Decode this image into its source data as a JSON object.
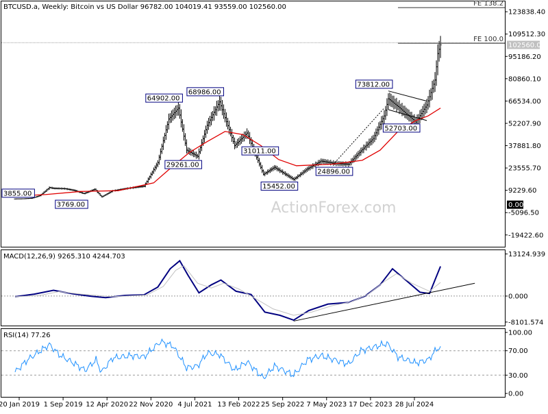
{
  "header": {
    "symbol_info": "BTCUSD.a, Weekly:  Bitcoin vs US Dollar  96782.00 104019.41 93559.00 102560.00"
  },
  "watermark": "ActionForex.com",
  "colors": {
    "price_bar": "#000000",
    "moving_average": "#e00000",
    "macd_line": "#000080",
    "macd_signal": "#c0c0c0",
    "rsi_line": "#1e90ff",
    "fe_line": "#333333",
    "dotted_level": "#999999"
  },
  "chart_data": [
    {
      "type": "line",
      "panel": "price",
      "price_axis": {
        "ticks": [
          123838.4,
          109512.3,
          95186.2,
          80860.1,
          66534.0,
          52207.9,
          37881.8,
          23555.7,
          9229.6,
          -5096.5,
          -19422.6
        ],
        "labels": [
          "123838.40",
          "109512.30",
          "95186.20",
          "80860.10",
          "66534.00",
          "52207.90",
          "37881.80",
          "23555.70",
          "9229.60",
          "-5096.50",
          "-19422.60"
        ],
        "range": [
          -27000,
          130500
        ]
      },
      "current_price": {
        "value": 102560,
        "label": "102560.00"
      },
      "zero_marker": {
        "value": 0,
        "label": "0.00"
      },
      "x_axis": {
        "labels": [
          "20 Jan 2019",
          "1 Sep 2019",
          "12 Apr 2020",
          "22 Nov 2020",
          "4 Jul 2021",
          "13 Feb 2022",
          "25 Sep 2022",
          "7 May 2023",
          "17 Dec 2023",
          "28 Jul 2024"
        ],
        "dates": [
          "2019-01-20",
          "2019-09-01",
          "2020-04-12",
          "2020-11-22",
          "2021-07-04",
          "2022-02-13",
          "2022-09-25",
          "2023-05-07",
          "2023-12-17",
          "2024-07-28"
        ]
      },
      "price_path": [
        [
          "2018-12-30",
          3700
        ],
        [
          "2019-02-10",
          3800
        ],
        [
          "2019-03-24",
          4100
        ],
        [
          "2019-05-05",
          5800
        ],
        [
          "2019-06-23",
          11000
        ],
        [
          "2019-07-14",
          10500
        ],
        [
          "2019-09-08",
          10300
        ],
        [
          "2019-10-27",
          9200
        ],
        [
          "2019-12-15",
          7100
        ],
        [
          "2020-02-09",
          9900
        ],
        [
          "2020-03-15",
          5000
        ],
        [
          "2020-05-10",
          8900
        ],
        [
          "2020-07-26",
          10500
        ],
        [
          "2020-10-18",
          11900
        ],
        [
          "2020-12-27",
          27000
        ],
        [
          "2021-02-21",
          55000
        ],
        [
          "2021-04-11",
          62000
        ],
        [
          "2021-05-23",
          35000
        ],
        [
          "2021-07-18",
          31000
        ],
        [
          "2021-09-05",
          51000
        ],
        [
          "2021-11-07",
          66000
        ],
        [
          "2022-01-23",
          38000
        ],
        [
          "2022-03-27",
          46000
        ],
        [
          "2022-06-19",
          19500
        ],
        [
          "2022-08-14",
          24000
        ],
        [
          "2022-11-20",
          16200
        ],
        [
          "2023-01-29",
          23000
        ],
        [
          "2023-04-09",
          28000
        ],
        [
          "2023-06-18",
          26500
        ],
        [
          "2023-08-27",
          26000
        ],
        [
          "2023-10-29",
          34500
        ],
        [
          "2023-12-31",
          42500
        ],
        [
          "2024-02-25",
          57000
        ],
        [
          "2024-03-17",
          68000
        ],
        [
          "2024-05-05",
          63000
        ],
        [
          "2024-08-04",
          53000
        ],
        [
          "2024-09-29",
          64000
        ],
        [
          "2024-11-10",
          80000
        ],
        [
          "2024-11-24",
          97000
        ],
        [
          "2024-12-08",
          102560
        ]
      ],
      "moving_average": [
        [
          "2018-12-30",
          5500
        ],
        [
          "2019-06-02",
          6500
        ],
        [
          "2019-12-01",
          8500
        ],
        [
          "2020-06-07",
          9000
        ],
        [
          "2020-12-06",
          14000
        ],
        [
          "2021-03-07",
          24000
        ],
        [
          "2021-06-06",
          33500
        ],
        [
          "2021-09-05",
          40500
        ],
        [
          "2021-12-05",
          47000
        ],
        [
          "2022-03-06",
          45000
        ],
        [
          "2022-06-05",
          38000
        ],
        [
          "2022-09-04",
          29000
        ],
        [
          "2022-12-04",
          25000
        ],
        [
          "2023-06-04",
          26000
        ],
        [
          "2023-11-05",
          28500
        ],
        [
          "2024-02-04",
          35000
        ],
        [
          "2024-05-05",
          47000
        ],
        [
          "2024-08-04",
          54000
        ],
        [
          "2024-10-06",
          57000
        ],
        [
          "2024-12-08",
          62000
        ]
      ],
      "fib_levels": [
        {
          "label": "FE 138.2",
          "value": 126500,
          "from": "2024-05-05"
        },
        {
          "label": "FE 100.0",
          "value": 103600,
          "from": "2024-05-05"
        }
      ],
      "dotted_level": {
        "value": 104019.41
      },
      "annotations": [
        {
          "label": "3855.00",
          "date": "2019-01-20",
          "value": 3855,
          "side": "right",
          "pos": "above"
        },
        {
          "label": "3769.00",
          "date": "2019-12-15",
          "value": 3769,
          "side": "left",
          "pos": "below"
        },
        {
          "label": "64902.00",
          "date": "2021-04-11",
          "value": 64902,
          "side": "left",
          "pos": "above"
        },
        {
          "label": "68986.00",
          "date": "2021-11-07",
          "value": 68986,
          "side": "left",
          "pos": "above"
        },
        {
          "label": "29261.00",
          "date": "2021-07-18",
          "value": 29261,
          "side": "left",
          "pos": "below"
        },
        {
          "label": "31011.00",
          "date": "2022-08-14",
          "value": 31011,
          "side": "left",
          "pos": "above"
        },
        {
          "label": "15452.00",
          "date": "2022-11-20",
          "value": 15452,
          "side": "left",
          "pos": "below"
        },
        {
          "label": "24896.00",
          "date": "2023-08-27",
          "value": 24896,
          "side": "left",
          "pos": "below"
        },
        {
          "label": "73812.00",
          "date": "2024-03-17",
          "value": 73812,
          "side": "left",
          "pos": "above"
        },
        {
          "label": "52703.00",
          "date": "2024-08-04",
          "value": 52703,
          "side": "left",
          "pos": "below"
        }
      ],
      "trendlines": [
        {
          "from": [
            "2023-06-18",
            27000
          ],
          "to": [
            "2024-02-25",
            62000
          ],
          "dashed": true
        },
        {
          "from": [
            "2024-03-17",
            73000
          ],
          "to": [
            "2024-09-29",
            66500
          ],
          "dashed": false
        },
        {
          "from": [
            "2024-03-17",
            61000
          ],
          "to": [
            "2024-09-29",
            54000
          ],
          "dashed": false
        }
      ]
    },
    {
      "type": "line",
      "panel": "macd",
      "title": "MACD(12,26,9) 9265.310 4244.703",
      "axis": {
        "ticks": [
          13124.939,
          0.0,
          -8101.574
        ],
        "labels": [
          "13124.939",
          "0.000",
          "-8101.574"
        ],
        "range": [
          -9200,
          14300
        ]
      },
      "series": [
        {
          "role": "macd",
          "points": [
            [
              "2018-12-30",
              -200
            ],
            [
              "2019-04-07",
              600
            ],
            [
              "2019-07-14",
              1800
            ],
            [
              "2019-10-20",
              700
            ],
            [
              "2020-01-26",
              -100
            ],
            [
              "2020-04-05",
              -500
            ],
            [
              "2020-07-12",
              200
            ],
            [
              "2020-10-18",
              400
            ],
            [
              "2020-12-27",
              2800
            ],
            [
              "2021-02-28",
              8500
            ],
            [
              "2021-04-18",
              11000
            ],
            [
              "2021-05-30",
              6500
            ],
            [
              "2021-07-25",
              1000
            ],
            [
              "2021-09-26",
              3500
            ],
            [
              "2021-11-14",
              5000
            ],
            [
              "2022-01-30",
              1500
            ],
            [
              "2022-04-17",
              500
            ],
            [
              "2022-06-26",
              -5000
            ],
            [
              "2022-09-11",
              -6000
            ],
            [
              "2022-11-20",
              -7500
            ],
            [
              "2023-02-05",
              -4500
            ],
            [
              "2023-05-14",
              -2500
            ],
            [
              "2023-08-27",
              -2000
            ],
            [
              "2023-11-19",
              0
            ],
            [
              "2024-02-04",
              3500
            ],
            [
              "2024-04-07",
              8500
            ],
            [
              "2024-06-23",
              4500
            ],
            [
              "2024-08-25",
              1200
            ],
            [
              "2024-10-13",
              800
            ],
            [
              "2024-12-08",
              9265.31
            ]
          ]
        },
        {
          "role": "signal",
          "points": [
            [
              "2018-12-30",
              -200
            ],
            [
              "2019-05-05",
              200
            ],
            [
              "2019-08-11",
              1400
            ],
            [
              "2019-12-01",
              600
            ],
            [
              "2020-05-10",
              -200
            ],
            [
              "2020-11-01",
              300
            ],
            [
              "2021-01-24",
              3000
            ],
            [
              "2021-03-28",
              8000
            ],
            [
              "2021-05-09",
              9500
            ],
            [
              "2021-07-18",
              4000
            ],
            [
              "2021-09-26",
              2500
            ],
            [
              "2021-11-28",
              4000
            ],
            [
              "2022-02-13",
              2200
            ],
            [
              "2022-05-15",
              -1000
            ],
            [
              "2022-08-07",
              -4000
            ],
            [
              "2022-11-20",
              -6000
            ],
            [
              "2023-02-19",
              -5000
            ],
            [
              "2023-06-04",
              -3000
            ],
            [
              "2023-09-10",
              -1800
            ],
            [
              "2023-12-03",
              500
            ],
            [
              "2024-02-25",
              4500
            ],
            [
              "2024-04-28",
              7000
            ],
            [
              "2024-07-14",
              4000
            ],
            [
              "2024-10-13",
              1500
            ],
            [
              "2024-12-08",
              4244.703
            ]
          ]
        }
      ],
      "trendlines": [
        {
          "from": [
            "2022-11-20",
            -7800
          ],
          "to": [
            "2025-06-01",
            4000
          ]
        }
      ]
    },
    {
      "type": "line",
      "panel": "rsi",
      "title": "RSI(14) 77.26",
      "axis": {
        "ticks": [
          100.0,
          70.0,
          30.0,
          0.0
        ],
        "labels": [
          "100.00",
          "70.00",
          "30.00",
          "0.00"
        ],
        "range": [
          0,
          100
        ],
        "dashed_levels": [
          70,
          30
        ]
      },
      "series": [
        {
          "role": "rsi",
          "points": [
            [
              "2018-12-30",
              35
            ],
            [
              "2019-03-03",
              55
            ],
            [
              "2019-06-23",
              80
            ],
            [
              "2019-08-18",
              62
            ],
            [
              "2019-11-03",
              48
            ],
            [
              "2019-12-22",
              38
            ],
            [
              "2020-02-16",
              55
            ],
            [
              "2020-03-15",
              35
            ],
            [
              "2020-05-10",
              58
            ],
            [
              "2020-08-16",
              62
            ],
            [
              "2020-10-18",
              60
            ],
            [
              "2021-01-10",
              85
            ],
            [
              "2021-03-14",
              78
            ],
            [
              "2021-05-23",
              42
            ],
            [
              "2021-07-18",
              45
            ],
            [
              "2021-09-05",
              66
            ],
            [
              "2021-11-07",
              64
            ],
            [
              "2022-01-23",
              38
            ],
            [
              "2022-03-27",
              52
            ],
            [
              "2022-06-19",
              25
            ],
            [
              "2022-08-14",
              45
            ],
            [
              "2022-11-20",
              30
            ],
            [
              "2023-01-29",
              55
            ],
            [
              "2023-04-09",
              62
            ],
            [
              "2023-06-18",
              55
            ],
            [
              "2023-08-27",
              48
            ],
            [
              "2023-10-29",
              70
            ],
            [
              "2024-03-10",
              82
            ],
            [
              "2024-05-05",
              60
            ],
            [
              "2024-08-04",
              50
            ],
            [
              "2024-10-06",
              55
            ],
            [
              "2024-11-17",
              72
            ],
            [
              "2024-12-08",
              77.26
            ]
          ]
        }
      ]
    }
  ]
}
